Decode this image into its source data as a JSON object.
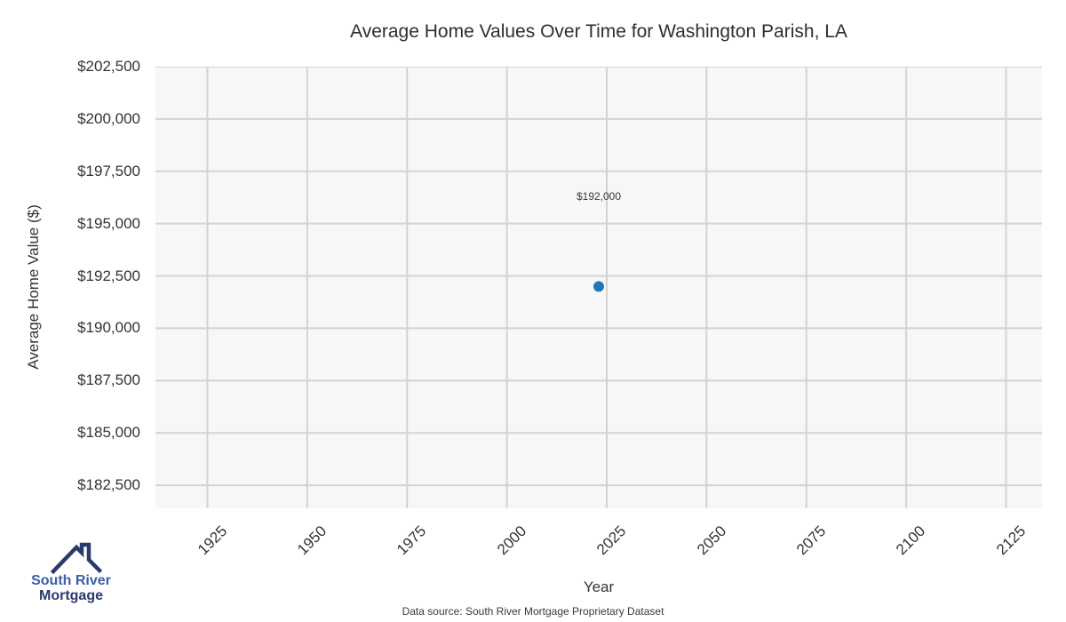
{
  "page": {
    "footer": "Data source: South River Mortgage Proprietary Dataset"
  },
  "logo": {
    "line1": "South River",
    "line2": "Mortgage",
    "colors": {
      "line1": "#3d5ca6",
      "line2": "#2b3a6e",
      "roof": "#2b3a6e"
    }
  },
  "chart_data": {
    "type": "scatter",
    "title": "Average Home Values Over Time for Washington Parish, LA",
    "xlabel": "Year",
    "ylabel": "Average Home Value ($)",
    "series": [
      {
        "name": "Average Home Value",
        "x": [
          2023
        ],
        "y": [
          192000
        ]
      }
    ],
    "annotations": [
      {
        "text": "$192,000",
        "x": 2023,
        "y": 196300
      }
    ],
    "xlim": [
      1912,
      2134
    ],
    "ylim": [
      181400,
      202500
    ],
    "xticks": [
      1925,
      1950,
      1975,
      2000,
      2025,
      2050,
      2075,
      2100,
      2125
    ],
    "xtick_labels": [
      "1925",
      "1950",
      "1975",
      "2000",
      "2025",
      "2050",
      "2075",
      "2100",
      "2125"
    ],
    "yticks": [
      182500,
      185000,
      187500,
      190000,
      192500,
      195000,
      197500,
      200000,
      202500
    ],
    "ytick_labels": [
      "$182,500",
      "$185,000",
      "$187,500",
      "$190,000",
      "$192,500",
      "$195,000",
      "$197,500",
      "$200,000",
      "$202,500"
    ],
    "grid": true,
    "legend": false,
    "point_radius": 6,
    "colors": {
      "point": "#2077b4",
      "grid": "#d3d3d3",
      "plot_bg": "#f7f7f7",
      "text": "#333333"
    }
  }
}
